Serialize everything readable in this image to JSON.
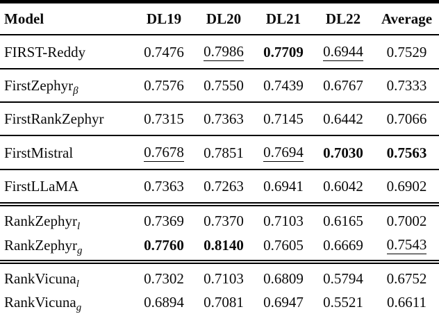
{
  "table": {
    "columns": [
      "Model",
      "DL19",
      "DL20",
      "DL21",
      "DL22",
      "Average"
    ],
    "emphasis_legend": {
      "bold": "bold",
      "underline": "underline"
    },
    "groups": [
      {
        "rows": [
          {
            "model": "FIRST-Reddy",
            "sub": "",
            "values": [
              "0.7476",
              "0.7986",
              "0.7709",
              "0.6944",
              "0.7529"
            ],
            "styles": [
              "",
              "underline",
              "bold",
              "underline",
              ""
            ]
          }
        ]
      },
      {
        "rows": [
          {
            "model": "FirstZephyr",
            "sub": "β",
            "values": [
              "0.7576",
              "0.7550",
              "0.7439",
              "0.6767",
              "0.7333"
            ],
            "styles": [
              "",
              "",
              "",
              "",
              ""
            ]
          }
        ]
      },
      {
        "rows": [
          {
            "model": "FirstRankZephyr",
            "sub": "",
            "values": [
              "0.7315",
              "0.7363",
              "0.7145",
              "0.6442",
              "0.7066"
            ],
            "styles": [
              "",
              "",
              "",
              "",
              ""
            ]
          }
        ]
      },
      {
        "rows": [
          {
            "model": "FirstMistral",
            "sub": "",
            "values": [
              "0.7678",
              "0.7851",
              "0.7694",
              "0.7030",
              "0.7563"
            ],
            "styles": [
              "underline",
              "",
              "underline",
              "bold",
              "bold"
            ]
          }
        ]
      },
      {
        "rows": [
          {
            "model": "FirstLLaMA",
            "sub": "",
            "values": [
              "0.7363",
              "0.7263",
              "0.6941",
              "0.6042",
              "0.6902"
            ],
            "styles": [
              "",
              "",
              "",
              "",
              ""
            ]
          }
        ]
      },
      {
        "rows": [
          {
            "model": "RankZephyr",
            "sub": "l",
            "values": [
              "0.7369",
              "0.7370",
              "0.7103",
              "0.6165",
              "0.7002"
            ],
            "styles": [
              "",
              "",
              "",
              "",
              ""
            ]
          },
          {
            "model": "RankZephyr",
            "sub": "g",
            "values": [
              "0.7760",
              "0.8140",
              "0.7605",
              "0.6669",
              "0.7543"
            ],
            "styles": [
              "bold",
              "bold",
              "",
              "",
              "underline"
            ]
          }
        ]
      },
      {
        "rows": [
          {
            "model": "RankVicuna",
            "sub": "l",
            "values": [
              "0.7302",
              "0.7103",
              "0.6809",
              "0.5794",
              "0.6752"
            ],
            "styles": [
              "",
              "",
              "",
              "",
              ""
            ]
          },
          {
            "model": "RankVicuna",
            "sub": "g",
            "values": [
              "0.6894",
              "0.7081",
              "0.6947",
              "0.5521",
              "0.6611"
            ],
            "styles": [
              "",
              "",
              "",
              "",
              ""
            ]
          }
        ]
      }
    ],
    "colors": {
      "text": "#0a0a0a",
      "background": "#ffffff",
      "rule": "#000000"
    }
  }
}
